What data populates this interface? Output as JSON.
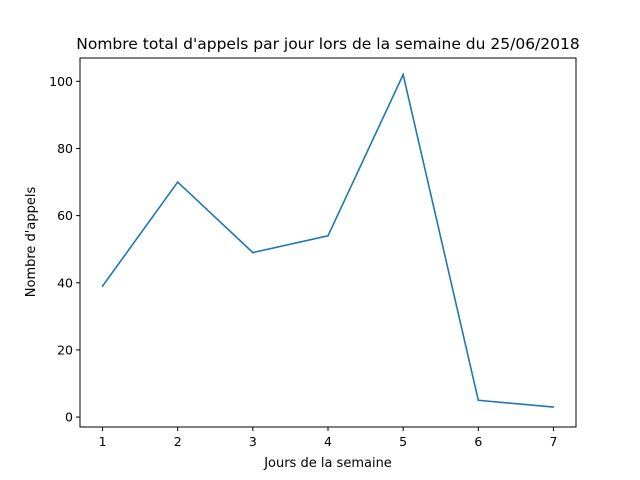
{
  "chart_data": {
    "type": "line",
    "title": "Nombre total d'appels par jour lors de la semaine du 25/06/2018",
    "xlabel": "Jours de la semaine",
    "ylabel": "Nombre d'appels",
    "x": [
      1,
      2,
      3,
      4,
      5,
      6,
      7
    ],
    "series": [
      {
        "values": [
          39,
          70,
          49,
          54,
          102,
          5,
          3
        ]
      }
    ],
    "xticks": [
      "1",
      "2",
      "3",
      "4",
      "5",
      "6",
      "7"
    ],
    "yticks": [
      "0",
      "20",
      "40",
      "60",
      "80",
      "100"
    ],
    "xlim": [
      0.7,
      7.3
    ],
    "ylim": [
      -2.95,
      106.95
    ],
    "grid": false,
    "line_color": "#1f77b4"
  }
}
